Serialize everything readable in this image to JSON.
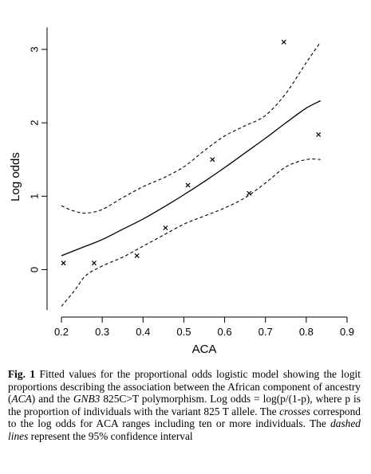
{
  "chart_data": {
    "type": "scatter",
    "xlabel": "ACA",
    "ylabel": "Log odds",
    "xlim": [
      0.2,
      0.9
    ],
    "ylim": [
      -0.55,
      3.3
    ],
    "xticks": [
      "0.2",
      "0.3",
      "0.4",
      "0.5",
      "0.6",
      "0.7",
      "0.8",
      "0.9"
    ],
    "yticks": [
      "0",
      "1",
      "2",
      "3"
    ],
    "grid": false,
    "points": [
      {
        "x": 0.205,
        "y": 0.09
      },
      {
        "x": 0.28,
        "y": 0.09
      },
      {
        "x": 0.385,
        "y": 0.19
      },
      {
        "x": 0.455,
        "y": 0.57
      },
      {
        "x": 0.51,
        "y": 1.15
      },
      {
        "x": 0.57,
        "y": 1.5
      },
      {
        "x": 0.66,
        "y": 1.04
      },
      {
        "x": 0.745,
        "y": 3.1
      },
      {
        "x": 0.83,
        "y": 1.84
      }
    ],
    "fitted": {
      "x": [
        0.2,
        0.25,
        0.3,
        0.35,
        0.4,
        0.45,
        0.5,
        0.55,
        0.6,
        0.65,
        0.7,
        0.75,
        0.8,
        0.835
      ],
      "y": [
        0.19,
        0.3,
        0.41,
        0.55,
        0.69,
        0.85,
        1.02,
        1.2,
        1.39,
        1.59,
        1.79,
        2.0,
        2.2,
        2.3
      ]
    },
    "ci_upper": {
      "x": [
        0.2,
        0.23,
        0.26,
        0.3,
        0.35,
        0.4,
        0.45,
        0.5,
        0.55,
        0.6,
        0.65,
        0.7,
        0.75,
        0.8,
        0.835
      ],
      "y": [
        0.87,
        0.8,
        0.77,
        0.82,
        0.98,
        1.13,
        1.25,
        1.4,
        1.62,
        1.82,
        1.96,
        2.1,
        2.4,
        2.82,
        3.1
      ]
    },
    "ci_lower": {
      "x": [
        0.2,
        0.23,
        0.26,
        0.3,
        0.35,
        0.4,
        0.45,
        0.5,
        0.55,
        0.6,
        0.65,
        0.7,
        0.75,
        0.8,
        0.835
      ],
      "y": [
        -0.5,
        -0.3,
        -0.08,
        0.05,
        0.17,
        0.32,
        0.47,
        0.62,
        0.73,
        0.84,
        0.98,
        1.18,
        1.4,
        1.5,
        1.5
      ]
    }
  },
  "caption": {
    "fig_label": "Fig. 1",
    "seg1": "  Fitted values for the proportional odds logistic model showing the logit proportions describing the association between the African component of ancestry (",
    "aca_italic": "ACA",
    "seg2": ") and the ",
    "gene_italic": "GNB3",
    "seg3": " 825C>T polymorphism. Log odds = log(p/(1-p), where p is the proportion of individuals with the variant 825 T allele. The ",
    "crosses_italic": "crosses",
    "seg4": " correspond to the log odds for ACA ranges including ten or more individuals. The ",
    "dashed_italic": "dashed lines",
    "seg5": " represent the 95% confidence interval"
  }
}
